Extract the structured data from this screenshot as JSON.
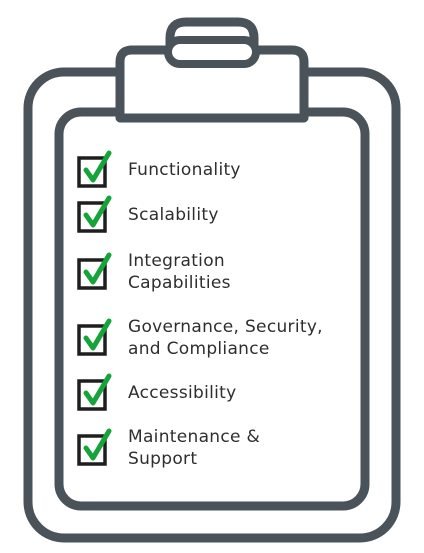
{
  "colors": {
    "outline": "#4a5359",
    "check": "#15a33a",
    "text": "#2e2e2e"
  },
  "checklist": {
    "items": [
      {
        "label": "Functionality",
        "checked": true,
        "icon": "checked-box-icon"
      },
      {
        "label": "Scalability",
        "checked": true,
        "icon": "checked-box-icon"
      },
      {
        "label": "Integration\nCapabilities",
        "checked": true,
        "icon": "checked-box-icon"
      },
      {
        "label": "Governance, Security,\nand Compliance",
        "checked": true,
        "icon": "checked-box-icon"
      },
      {
        "label": "Accessibility",
        "checked": true,
        "icon": "checked-box-icon"
      },
      {
        "label": "Maintenance &\nSupport",
        "checked": true,
        "icon": "checked-box-icon"
      }
    ]
  }
}
